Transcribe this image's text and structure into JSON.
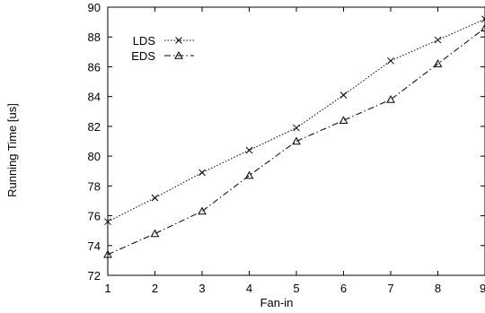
{
  "chart_data": {
    "type": "line",
    "xlabel": "Fan-in",
    "ylabel": "Running Time [us]",
    "xlim": [
      1,
      9
    ],
    "ylim": [
      72,
      90
    ],
    "x_ticks": [
      "1",
      "2",
      "3",
      "4",
      "5",
      "6",
      "7",
      "8",
      "9"
    ],
    "y_ticks": [
      "72",
      "74",
      "76",
      "78",
      "80",
      "82",
      "84",
      "86",
      "88",
      "90"
    ],
    "grid": false,
    "legend_position": "top-left",
    "x": [
      1,
      2,
      3,
      4,
      5,
      6,
      7,
      8,
      9
    ],
    "series": [
      {
        "name": "LDS",
        "marker": "x",
        "line_style": "dotted",
        "values": [
          75.6,
          77.2,
          78.9,
          80.4,
          81.9,
          84.1,
          86.4,
          87.8,
          89.2
        ]
      },
      {
        "name": "EDS",
        "marker": "triangle",
        "line_style": "dash-dot",
        "values": [
          73.4,
          74.8,
          76.3,
          78.7,
          81.0,
          82.4,
          83.8,
          86.2,
          88.6
        ]
      }
    ]
  }
}
